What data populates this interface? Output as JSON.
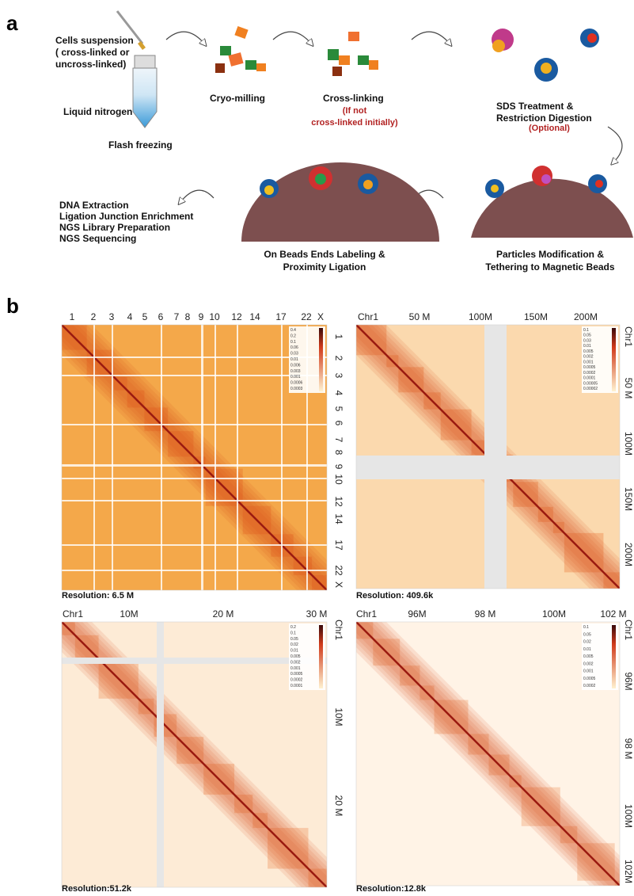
{
  "panel_a": {
    "label": "a",
    "cells": [
      "Cells suspension",
      "( cross-linked or",
      "uncross-linked)"
    ],
    "nitrogen": "Liquid nitrogen",
    "flash": "Flash freezing",
    "cryo": "Cryo-milling",
    "crosslink": "Cross-linking",
    "crosslink_note": [
      "(If not",
      "cross-linked initially)"
    ],
    "sds": [
      "SDS Treatment  &",
      "Restriction Digestion"
    ],
    "sds_note": "(Optional)",
    "downstream": [
      "DNA Extraction",
      "Ligation Junction Enrichment",
      "NGS Library Preparation",
      "NGS Sequencing"
    ],
    "ligation": [
      "On Beads Ends Labeling &",
      "Proximity Ligation"
    ],
    "tether": [
      "Particles Modification &",
      "Tethering to Magnetic Beads"
    ]
  },
  "panel_b": {
    "label": "b",
    "maps": [
      {
        "top_labels": [
          "1",
          "2",
          "3",
          "4",
          "5",
          "6",
          "7",
          "8",
          "9",
          "10",
          "12",
          "14",
          "17",
          "22",
          "X"
        ],
        "side_labels": [
          "1",
          "2",
          "3",
          "4",
          "5",
          "6",
          "7",
          "8",
          "9",
          "10",
          "12",
          "14",
          "17",
          "22",
          "X"
        ],
        "colorbar": [
          "0.4",
          "0.2",
          "0.1",
          "0.06",
          "0.03",
          "0.01",
          "0.006",
          "0.003",
          "0.001",
          "0.0006",
          "0.0003"
        ],
        "resolution": "Resolution: 6.5 M"
      },
      {
        "top_labels": [
          "Chr1",
          "50 M",
          "100M",
          "150M",
          "200M"
        ],
        "side_labels": [
          "Chr1",
          "50 M",
          "100M",
          "150M",
          "200M"
        ],
        "colorbar": [
          "0.1",
          "0.05",
          "0.03",
          "0.01",
          "0.005",
          "0.002",
          "0.001",
          "0.0005",
          "0.0002",
          "0.0001",
          "0.00005",
          "0.00002"
        ],
        "resolution": "Resolution: 409.6k"
      },
      {
        "top_labels": [
          "Chr1",
          "10M",
          "20 M",
          "30 M"
        ],
        "side_labels": [
          "Chr1",
          "10M",
          "20 M"
        ],
        "colorbar": [
          "0.2",
          "0.1",
          "0.05",
          "0.02",
          "0.01",
          "0.005",
          "0.002",
          "0.001",
          "0.0005",
          "0.0002",
          "0.0001"
        ],
        "resolution": "Resolution:51.2k"
      },
      {
        "top_labels": [
          "Chr1",
          "96M",
          "98 M",
          "100M",
          "102 M"
        ],
        "side_labels": [
          "Chr1",
          "96M",
          "98 M",
          "100M",
          "102M"
        ],
        "colorbar": [
          "0.1",
          "0.05",
          "0.02",
          "0.01",
          "0.005",
          "0.002",
          "0.001",
          "0.0005",
          "0.0002"
        ],
        "resolution": "Resolution:12.8k"
      }
    ]
  }
}
